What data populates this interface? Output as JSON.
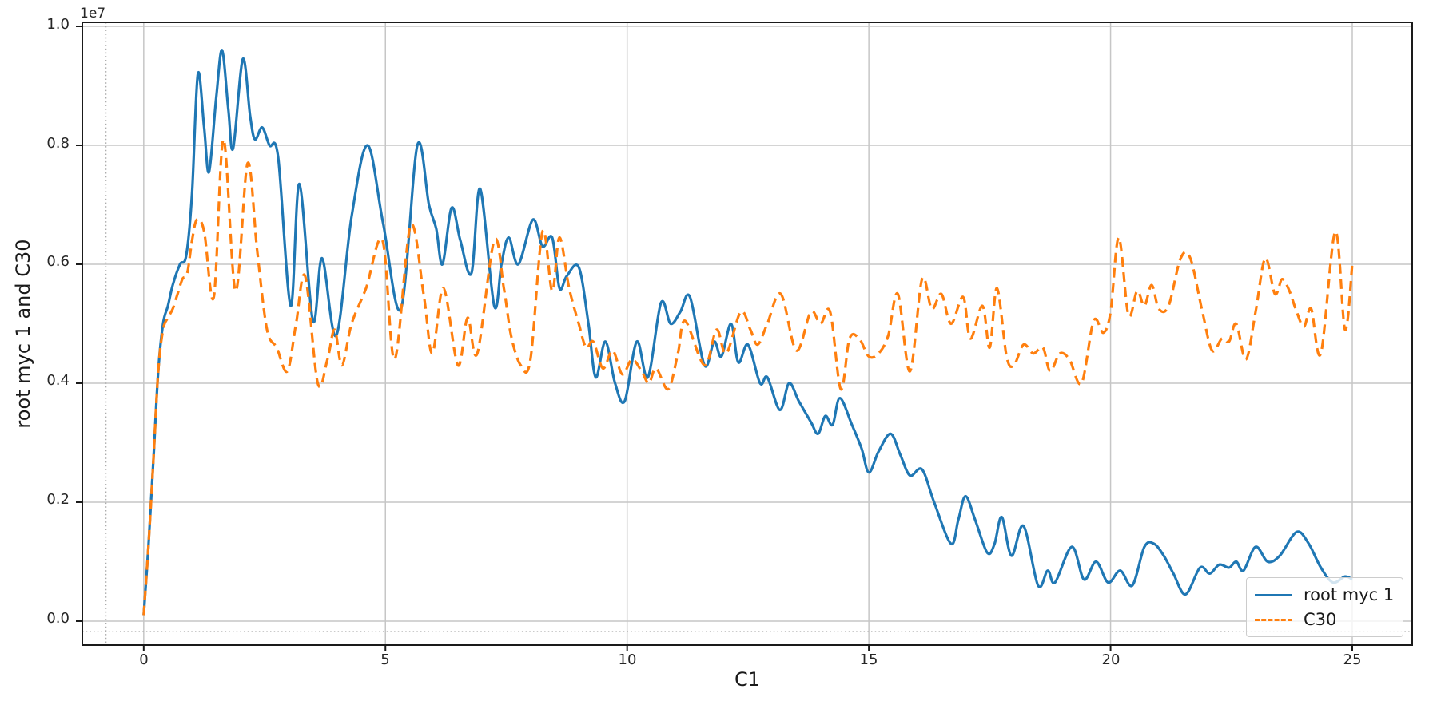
{
  "chart_data": {
    "type": "line",
    "xlabel": "C1",
    "ylabel": "root myc 1 and C30",
    "y_offset_label": "1e7",
    "y_scale_note": "y values in units of 1e7 per axis offset label",
    "xlim": [
      -1.27,
      26.24
    ],
    "ylim": [
      -0.0403,
      1.0067
    ],
    "grid": true,
    "x_ticks": {
      "values": [
        0,
        5,
        10,
        15,
        20,
        25
      ],
      "labels": [
        "0",
        "5",
        "10",
        "15",
        "20",
        "25"
      ]
    },
    "y_ticks": {
      "values": [
        0.0,
        0.2,
        0.4,
        0.6,
        0.8,
        1.0
      ],
      "labels": [
        "0.0",
        "0.2",
        "0.4",
        "0.6",
        "0.8",
        "1.0"
      ]
    },
    "guides": {
      "x_dotted": -0.78,
      "y_dotted": -0.0175
    },
    "legend": {
      "position": "lower right"
    },
    "series": [
      {
        "name": "root myc 1",
        "color": "#1f77b4",
        "style": "solid",
        "points": [
          [
            0.0,
            0.01
          ],
          [
            0.1,
            0.13
          ],
          [
            0.2,
            0.27
          ],
          [
            0.3,
            0.42
          ],
          [
            0.4,
            0.5
          ],
          [
            0.5,
            0.53
          ],
          [
            0.6,
            0.565
          ],
          [
            0.75,
            0.6
          ],
          [
            0.88,
            0.615
          ],
          [
            1.0,
            0.72
          ],
          [
            1.12,
            0.92
          ],
          [
            1.25,
            0.83
          ],
          [
            1.35,
            0.755
          ],
          [
            1.5,
            0.88
          ],
          [
            1.62,
            0.96
          ],
          [
            1.75,
            0.86
          ],
          [
            1.85,
            0.795
          ],
          [
            2.05,
            0.945
          ],
          [
            2.2,
            0.85
          ],
          [
            2.3,
            0.81
          ],
          [
            2.45,
            0.83
          ],
          [
            2.6,
            0.8
          ],
          [
            2.78,
            0.78
          ],
          [
            3.04,
            0.53
          ],
          [
            3.22,
            0.735
          ],
          [
            3.5,
            0.505
          ],
          [
            3.69,
            0.61
          ],
          [
            3.98,
            0.48
          ],
          [
            4.3,
            0.68
          ],
          [
            4.63,
            0.8
          ],
          [
            4.95,
            0.67
          ],
          [
            5.32,
            0.525
          ],
          [
            5.66,
            0.8
          ],
          [
            5.9,
            0.7
          ],
          [
            6.05,
            0.66
          ],
          [
            6.18,
            0.6
          ],
          [
            6.37,
            0.695
          ],
          [
            6.55,
            0.64
          ],
          [
            6.78,
            0.585
          ],
          [
            6.96,
            0.727
          ],
          [
            7.25,
            0.53
          ],
          [
            7.4,
            0.6
          ],
          [
            7.55,
            0.645
          ],
          [
            7.75,
            0.6
          ],
          [
            8.05,
            0.675
          ],
          [
            8.25,
            0.63
          ],
          [
            8.45,
            0.645
          ],
          [
            8.6,
            0.56
          ],
          [
            8.75,
            0.58
          ],
          [
            9.0,
            0.595
          ],
          [
            9.2,
            0.5
          ],
          [
            9.35,
            0.41
          ],
          [
            9.55,
            0.47
          ],
          [
            9.75,
            0.4
          ],
          [
            9.95,
            0.37
          ],
          [
            10.2,
            0.47
          ],
          [
            10.43,
            0.41
          ],
          [
            10.7,
            0.535
          ],
          [
            10.9,
            0.5
          ],
          [
            11.1,
            0.52
          ],
          [
            11.3,
            0.545
          ],
          [
            11.6,
            0.43
          ],
          [
            11.8,
            0.47
          ],
          [
            11.95,
            0.445
          ],
          [
            12.15,
            0.5
          ],
          [
            12.3,
            0.435
          ],
          [
            12.5,
            0.465
          ],
          [
            12.75,
            0.4
          ],
          [
            12.9,
            0.41
          ],
          [
            13.16,
            0.355
          ],
          [
            13.35,
            0.4
          ],
          [
            13.55,
            0.37
          ],
          [
            13.8,
            0.335
          ],
          [
            13.95,
            0.315
          ],
          [
            14.1,
            0.345
          ],
          [
            14.25,
            0.33
          ],
          [
            14.4,
            0.375
          ],
          [
            14.65,
            0.33
          ],
          [
            14.85,
            0.29
          ],
          [
            15.0,
            0.25
          ],
          [
            15.2,
            0.285
          ],
          [
            15.45,
            0.315
          ],
          [
            15.65,
            0.28
          ],
          [
            15.85,
            0.245
          ],
          [
            16.1,
            0.255
          ],
          [
            16.35,
            0.2
          ],
          [
            16.7,
            0.13
          ],
          [
            16.85,
            0.17
          ],
          [
            17.0,
            0.21
          ],
          [
            17.2,
            0.17
          ],
          [
            17.45,
            0.115
          ],
          [
            17.6,
            0.13
          ],
          [
            17.75,
            0.175
          ],
          [
            17.95,
            0.11
          ],
          [
            18.2,
            0.16
          ],
          [
            18.5,
            0.06
          ],
          [
            18.7,
            0.085
          ],
          [
            18.85,
            0.065
          ],
          [
            19.2,
            0.125
          ],
          [
            19.45,
            0.07
          ],
          [
            19.7,
            0.1
          ],
          [
            19.95,
            0.065
          ],
          [
            20.2,
            0.085
          ],
          [
            20.45,
            0.06
          ],
          [
            20.7,
            0.125
          ],
          [
            20.9,
            0.13
          ],
          [
            21.1,
            0.11
          ],
          [
            21.3,
            0.08
          ],
          [
            21.55,
            0.045
          ],
          [
            21.85,
            0.09
          ],
          [
            22.05,
            0.08
          ],
          [
            22.25,
            0.095
          ],
          [
            22.45,
            0.09
          ],
          [
            22.6,
            0.1
          ],
          [
            22.75,
            0.085
          ],
          [
            23.0,
            0.125
          ],
          [
            23.25,
            0.1
          ],
          [
            23.5,
            0.11
          ],
          [
            23.85,
            0.15
          ],
          [
            24.1,
            0.13
          ],
          [
            24.35,
            0.09
          ],
          [
            24.6,
            0.065
          ],
          [
            24.85,
            0.075
          ],
          [
            25.0,
            0.07
          ]
        ]
      },
      {
        "name": "C30",
        "color": "#ff7f0e",
        "style": "dashed",
        "points": [
          [
            0.0,
            0.01
          ],
          [
            0.1,
            0.13
          ],
          [
            0.2,
            0.27
          ],
          [
            0.3,
            0.42
          ],
          [
            0.4,
            0.49
          ],
          [
            0.5,
            0.51
          ],
          [
            0.6,
            0.525
          ],
          [
            0.7,
            0.55
          ],
          [
            0.8,
            0.575
          ],
          [
            0.9,
            0.585
          ],
          [
            1.0,
            0.64
          ],
          [
            1.1,
            0.675
          ],
          [
            1.25,
            0.655
          ],
          [
            1.45,
            0.545
          ],
          [
            1.65,
            0.81
          ],
          [
            1.9,
            0.555
          ],
          [
            2.15,
            0.77
          ],
          [
            2.35,
            0.62
          ],
          [
            2.55,
            0.49
          ],
          [
            2.75,
            0.46
          ],
          [
            2.97,
            0.42
          ],
          [
            3.15,
            0.5
          ],
          [
            3.34,
            0.58
          ],
          [
            3.6,
            0.4
          ],
          [
            3.8,
            0.44
          ],
          [
            3.95,
            0.49
          ],
          [
            4.1,
            0.43
          ],
          [
            4.3,
            0.5
          ],
          [
            4.6,
            0.56
          ],
          [
            4.94,
            0.64
          ],
          [
            5.19,
            0.44
          ],
          [
            5.52,
            0.665
          ],
          [
            5.79,
            0.55
          ],
          [
            5.97,
            0.45
          ],
          [
            6.2,
            0.56
          ],
          [
            6.5,
            0.43
          ],
          [
            6.7,
            0.51
          ],
          [
            6.9,
            0.45
          ],
          [
            7.25,
            0.64
          ],
          [
            7.45,
            0.56
          ],
          [
            7.6,
            0.48
          ],
          [
            7.8,
            0.43
          ],
          [
            8.0,
            0.44
          ],
          [
            8.25,
            0.655
          ],
          [
            8.45,
            0.555
          ],
          [
            8.6,
            0.645
          ],
          [
            8.8,
            0.56
          ],
          [
            9.0,
            0.5
          ],
          [
            9.15,
            0.46
          ],
          [
            9.3,
            0.47
          ],
          [
            9.5,
            0.425
          ],
          [
            9.7,
            0.455
          ],
          [
            9.9,
            0.415
          ],
          [
            10.1,
            0.44
          ],
          [
            10.3,
            0.42
          ],
          [
            10.45,
            0.4
          ],
          [
            10.6,
            0.425
          ],
          [
            10.85,
            0.39
          ],
          [
            11.05,
            0.45
          ],
          [
            11.2,
            0.505
          ],
          [
            11.6,
            0.43
          ],
          [
            11.85,
            0.49
          ],
          [
            12.05,
            0.45
          ],
          [
            12.35,
            0.52
          ],
          [
            12.55,
            0.49
          ],
          [
            12.7,
            0.465
          ],
          [
            12.9,
            0.5
          ],
          [
            13.18,
            0.55
          ],
          [
            13.5,
            0.455
          ],
          [
            13.8,
            0.52
          ],
          [
            14.0,
            0.5
          ],
          [
            14.2,
            0.52
          ],
          [
            14.42,
            0.39
          ],
          [
            14.6,
            0.475
          ],
          [
            14.8,
            0.475
          ],
          [
            15.0,
            0.445
          ],
          [
            15.2,
            0.45
          ],
          [
            15.4,
            0.48
          ],
          [
            15.6,
            0.55
          ],
          [
            15.85,
            0.42
          ],
          [
            16.1,
            0.575
          ],
          [
            16.3,
            0.525
          ],
          [
            16.5,
            0.55
          ],
          [
            16.7,
            0.5
          ],
          [
            16.95,
            0.545
          ],
          [
            17.1,
            0.475
          ],
          [
            17.35,
            0.53
          ],
          [
            17.5,
            0.46
          ],
          [
            17.65,
            0.56
          ],
          [
            17.85,
            0.445
          ],
          [
            18.0,
            0.43
          ],
          [
            18.2,
            0.465
          ],
          [
            18.4,
            0.45
          ],
          [
            18.6,
            0.46
          ],
          [
            18.75,
            0.42
          ],
          [
            18.95,
            0.45
          ],
          [
            19.15,
            0.44
          ],
          [
            19.4,
            0.4
          ],
          [
            19.65,
            0.505
          ],
          [
            19.85,
            0.485
          ],
          [
            20.0,
            0.52
          ],
          [
            20.17,
            0.645
          ],
          [
            20.37,
            0.515
          ],
          [
            20.55,
            0.555
          ],
          [
            20.7,
            0.53
          ],
          [
            20.85,
            0.565
          ],
          [
            21.0,
            0.525
          ],
          [
            21.2,
            0.53
          ],
          [
            21.45,
            0.61
          ],
          [
            21.65,
            0.61
          ],
          [
            21.9,
            0.52
          ],
          [
            22.1,
            0.455
          ],
          [
            22.3,
            0.475
          ],
          [
            22.45,
            0.47
          ],
          [
            22.6,
            0.5
          ],
          [
            22.8,
            0.44
          ],
          [
            23.0,
            0.52
          ],
          [
            23.2,
            0.61
          ],
          [
            23.4,
            0.55
          ],
          [
            23.55,
            0.575
          ],
          [
            23.7,
            0.555
          ],
          [
            23.85,
            0.52
          ],
          [
            24.0,
            0.495
          ],
          [
            24.15,
            0.525
          ],
          [
            24.35,
            0.45
          ],
          [
            24.65,
            0.655
          ],
          [
            24.85,
            0.49
          ],
          [
            25.0,
            0.6
          ]
        ]
      }
    ]
  }
}
